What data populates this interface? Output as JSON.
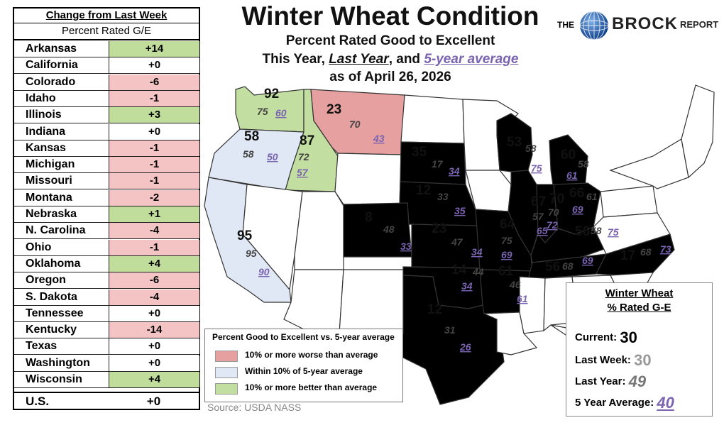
{
  "table": {
    "header1": "Change from Last Week",
    "header2": "Percent Rated G/E",
    "rows": [
      {
        "state": "Arkansas",
        "change": "+14",
        "cat": "better"
      },
      {
        "state": "California",
        "change": "+0",
        "cat": "none"
      },
      {
        "state": "Colorado",
        "change": "-6",
        "cat": "worse"
      },
      {
        "state": "Idaho",
        "change": "-1",
        "cat": "worse"
      },
      {
        "state": "Illinois",
        "change": "+3",
        "cat": "better"
      },
      {
        "state": "Indiana",
        "change": "+0",
        "cat": "none"
      },
      {
        "state": "Kansas",
        "change": "-1",
        "cat": "worse"
      },
      {
        "state": "Michigan",
        "change": "-1",
        "cat": "worse"
      },
      {
        "state": "Missouri",
        "change": "-1",
        "cat": "worse"
      },
      {
        "state": "Montana",
        "change": "-2",
        "cat": "worse"
      },
      {
        "state": "Nebraska",
        "change": "+1",
        "cat": "better"
      },
      {
        "state": "N. Carolina",
        "change": "-4",
        "cat": "worse"
      },
      {
        "state": "Ohio",
        "change": "-1",
        "cat": "worse"
      },
      {
        "state": "Oklahoma",
        "change": "+4",
        "cat": "better"
      },
      {
        "state": "Oregon",
        "change": "-6",
        "cat": "worse"
      },
      {
        "state": "S. Dakota",
        "change": "-4",
        "cat": "worse"
      },
      {
        "state": "Tennessee",
        "change": "+0",
        "cat": "none"
      },
      {
        "state": "Kentucky",
        "change": "-14",
        "cat": "worse"
      },
      {
        "state": "Texas",
        "change": "+0",
        "cat": "none"
      },
      {
        "state": "Washington",
        "change": "+0",
        "cat": "none"
      },
      {
        "state": "Wisconsin",
        "change": "+4",
        "cat": "better"
      }
    ],
    "us_label": "U.S.",
    "us_change": "+0"
  },
  "title": "Winter Wheat Condition",
  "subtitle1": "Percent Rated Good to Excellent",
  "subtitle2": {
    "a": "This Year, ",
    "b": "Last Year",
    "c": ", and ",
    "d": "5-year average"
  },
  "subtitle3": "as of April 26, 2026",
  "logo": {
    "the": "THE",
    "brock": "BROCK",
    "report": "REPORT"
  },
  "colors": {
    "worse": "#e6a0a0",
    "within": "#dfe8f4",
    "better": "#c3dea1",
    "neutral": "#ffffff",
    "purple": "#7a63b0",
    "table_worse": "#f4c4c4",
    "table_better": "#c0dd9c"
  },
  "map_states": [
    {
      "abbr": "WA",
      "cur": "92",
      "last": "75",
      "avg": "60",
      "cat": "better"
    },
    {
      "abbr": "OR",
      "cur": "58",
      "last": "58",
      "avg": "50",
      "cat": "within"
    },
    {
      "abbr": "ID",
      "cur": "87",
      "last": "72",
      "avg": "57",
      "cat": "better"
    },
    {
      "abbr": "MT",
      "cur": "23",
      "last": "70",
      "avg": "43",
      "cat": "worse"
    },
    {
      "abbr": "CA",
      "cur": "95",
      "last": "95",
      "avg": "90",
      "cat": "within"
    },
    {
      "abbr": "SD",
      "cur": "35",
      "last": "17",
      "avg": "34",
      "cat": "within"
    },
    {
      "abbr": "NE",
      "cur": "12",
      "last": "33",
      "avg": "35",
      "cat": "worse"
    },
    {
      "abbr": "CO",
      "cur": "8",
      "last": "48",
      "avg": "33",
      "cat": "worse"
    },
    {
      "abbr": "KS",
      "cur": "23",
      "last": "47",
      "avg": "34",
      "cat": "worse"
    },
    {
      "abbr": "OK",
      "cur": "14",
      "last": "44",
      "avg": "34",
      "cat": "worse"
    },
    {
      "abbr": "TX",
      "cur": "12",
      "last": "31",
      "avg": "26",
      "cat": "worse"
    },
    {
      "abbr": "WI",
      "cur": "53",
      "last": "58",
      "avg": "75",
      "cat": "worse"
    },
    {
      "abbr": "MI",
      "cur": "60",
      "last": "58",
      "avg": "61",
      "cat": "within"
    },
    {
      "abbr": "MO",
      "cur": "64",
      "last": "75",
      "avg": "69",
      "cat": "within"
    },
    {
      "abbr": "IL",
      "cur": "67",
      "last": "57",
      "avg": "65",
      "cat": "within"
    },
    {
      "abbr": "IN",
      "cur": "70",
      "last": "70",
      "avg": "72",
      "cat": "within"
    },
    {
      "abbr": "OH",
      "cur": "66",
      "last": "61",
      "avg": "69",
      "cat": "within"
    },
    {
      "abbr": "AR",
      "cur": "61",
      "last": "46",
      "avg": "61",
      "cat": "within"
    },
    {
      "abbr": "KY",
      "cur": "56",
      "last": "58",
      "avg": "75",
      "cat": "worse"
    },
    {
      "abbr": "TN",
      "cur": "56",
      "last": "68",
      "avg": "69",
      "cat": "worse"
    },
    {
      "abbr": "NC",
      "cur": "17",
      "last": "68",
      "avg": "73",
      "cat": "worse"
    }
  ],
  "legend": {
    "title": "Percent Good to Excellent vs. 5-year average",
    "items": [
      "10% or more worse than average",
      "Within 10% of 5-year average",
      "10% or more better than average"
    ]
  },
  "source": "Source: USDA NASS",
  "summary": {
    "h1": "Winter Wheat",
    "h2": "% Rated G-E",
    "current_label": "Current:",
    "current": "30",
    "lastweek_label": "Last Week:",
    "lastweek": "30",
    "lastyear_label": "Last Year:",
    "lastyear": "49",
    "avg_label": "5 Year Average:",
    "avg": "40"
  }
}
